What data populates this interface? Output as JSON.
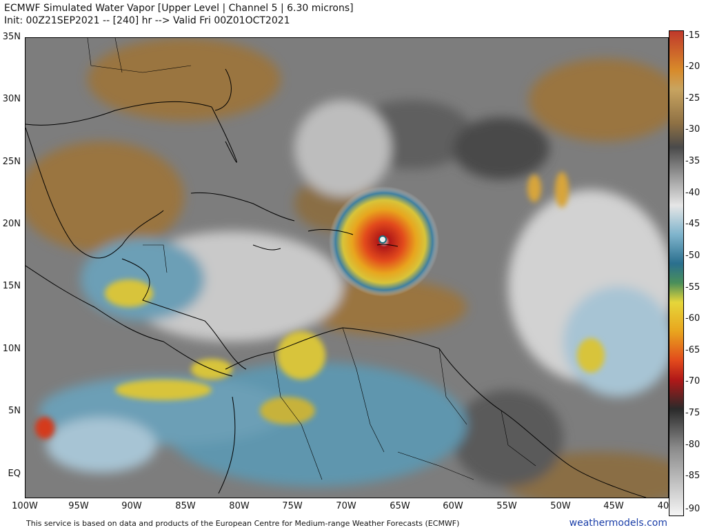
{
  "header": {
    "title": "ECMWF Simulated Water Vapor [Upper Level | Channel 5 | 6.30 microns]",
    "subtitle": "Init: 00Z21SEP2021 -- [240] hr --> Valid Fri 00Z01OCT2021"
  },
  "map": {
    "lat_labels": [
      "35N",
      "30N",
      "25N",
      "20N",
      "15N",
      "10N",
      "5N",
      "EQ"
    ],
    "lon_labels": [
      "100W",
      "95W",
      "90W",
      "85W",
      "80W",
      "75W",
      "70W",
      "65W",
      "60W",
      "55W",
      "50W",
      "45W",
      "40"
    ],
    "colors": {
      "warm_dry": "#9a7440",
      "gray": "#8a8a8a",
      "light": "#e4e4e4",
      "blue": "#3f7fa0",
      "yellow": "#d8c43a",
      "red": "#d43a1e"
    }
  },
  "colorbar": {
    "labels": [
      "-15",
      "-20",
      "-25",
      "-30",
      "-35",
      "-40",
      "-45",
      "-50",
      "-55",
      "-60",
      "-65",
      "-70",
      "-75",
      "-80",
      "-85",
      "-90"
    ]
  },
  "footer": {
    "note": "This service is based on data and products of the European Centre for Medium-range Weather Forecasts (ECMWF)",
    "brand": "weathermodels.com"
  }
}
